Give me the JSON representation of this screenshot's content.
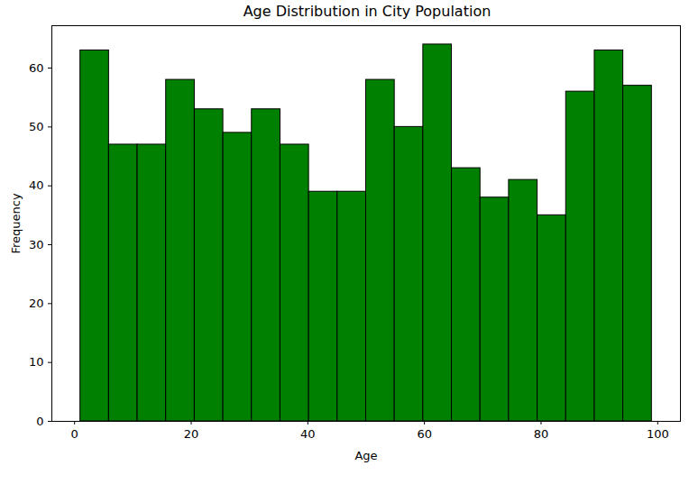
{
  "chart_data": {
    "type": "histogram",
    "title": "Age Distribution in City Population",
    "x_label": "Age",
    "y_label": "Frequency",
    "bins": [
      1,
      5.9,
      10.8,
      15.7,
      20.6,
      25.5,
      30.4,
      35.3,
      40.2,
      45.1,
      50,
      54.9,
      59.8,
      64.7,
      69.6,
      74.5,
      79.4,
      84.3,
      89.2,
      94.1,
      99
    ],
    "values": [
      63,
      47,
      47,
      58,
      53,
      49,
      53,
      47,
      39,
      39,
      58,
      50,
      64,
      43,
      38,
      41,
      35,
      56,
      63,
      57
    ],
    "color": "#008000",
    "xlim": [
      -3.9,
      103.9
    ],
    "xticks": [
      0,
      20,
      40,
      60,
      80,
      100
    ],
    "ylim": [
      0,
      67.2
    ],
    "yticks": [
      0,
      10,
      20,
      30,
      40,
      50,
      60
    ],
    "grid": false
  }
}
